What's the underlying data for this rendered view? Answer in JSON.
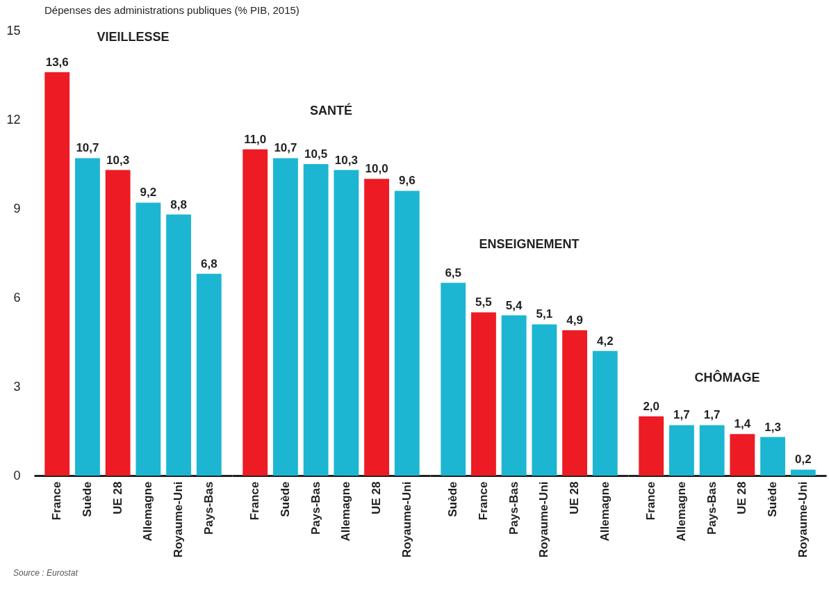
{
  "chart_data": [
    {
      "type": "bar",
      "title": "VIEILLESSE",
      "ylabel": "Dépenses des administrations publiques (% PIB, 2015)",
      "annotations": [
        "Source : Eurostat"
      ],
      "categories": [
        "France",
        "Suède",
        "UE 28",
        "Allemagne",
        "Royaume-Uni",
        "Pays-Bas"
      ],
      "values": [
        13.6,
        10.7,
        10.3,
        9.2,
        8.8,
        6.8
      ],
      "value_labels": [
        "13,6",
        "10,7",
        "10,3",
        "9,2",
        "8,8",
        "6,8"
      ],
      "colors": [
        "#ed1c24",
        "#1cb6d2",
        "#ed1c24",
        "#1cb6d2",
        "#1cb6d2",
        "#1cb6d2"
      ],
      "ylim": [
        0,
        15
      ],
      "yticks": [
        0,
        3,
        6,
        9,
        12,
        15
      ]
    },
    {
      "type": "bar",
      "title": "SANTÉ",
      "categories": [
        "France",
        "Suède",
        "Pays-Bas",
        "Allemagne",
        "UE 28",
        "Royaume-Uni"
      ],
      "values": [
        11.0,
        10.7,
        10.5,
        10.3,
        10.0,
        9.6
      ],
      "value_labels": [
        "11,0",
        "10,7",
        "10,5",
        "10,3",
        "10,0",
        "9,6"
      ],
      "colors": [
        "#ed1c24",
        "#1cb6d2",
        "#1cb6d2",
        "#1cb6d2",
        "#ed1c24",
        "#1cb6d2"
      ],
      "ylim": [
        0,
        15
      ],
      "yticks": [
        0,
        3,
        6,
        9,
        12,
        15
      ],
      "tick_labels": "x"
    },
    {
      "type": "bar",
      "title": "ENSEIGNEMENT",
      "categories": [
        "Suède",
        "France",
        "Pays-Bas",
        "Royaume-Uni",
        "UE 28",
        "Allemagne"
      ],
      "values": [
        6.5,
        5.5,
        5.4,
        5.1,
        4.9,
        4.2
      ],
      "value_labels": [
        "6,5",
        "5,5",
        "5,4",
        "5,1",
        "4,9",
        "4,2"
      ],
      "colors": [
        "#1cb6d2",
        "#ed1c24",
        "#1cb6d2",
        "#1cb6d2",
        "#ed1c24",
        "#1cb6d2"
      ],
      "ylim": [
        0,
        15
      ],
      "yticks": [
        0,
        3,
        6,
        9,
        12,
        15
      ],
      "tick_labels": "x"
    },
    {
      "type": "bar",
      "title": "CHÔMAGE",
      "categories": [
        "France",
        "Allemagne",
        "Pays-Bas",
        "UE 28",
        "Suède",
        "Royaume-Uni"
      ],
      "values": [
        2.0,
        1.7,
        1.7,
        1.4,
        1.3,
        0.2
      ],
      "value_labels": [
        "2,0",
        "1,7",
        "1,7",
        "1,4",
        "1,3",
        "0,2"
      ],
      "colors": [
        "#ed1c24",
        "#1cb6d2",
        "#1cb6d2",
        "#ed1c24",
        "#1cb6d2",
        "#1cb6d2"
      ],
      "ylim": [
        0,
        15
      ],
      "yticks": [
        0,
        3,
        6,
        9,
        12,
        15
      ],
      "tick_labels": "x"
    }
  ]
}
